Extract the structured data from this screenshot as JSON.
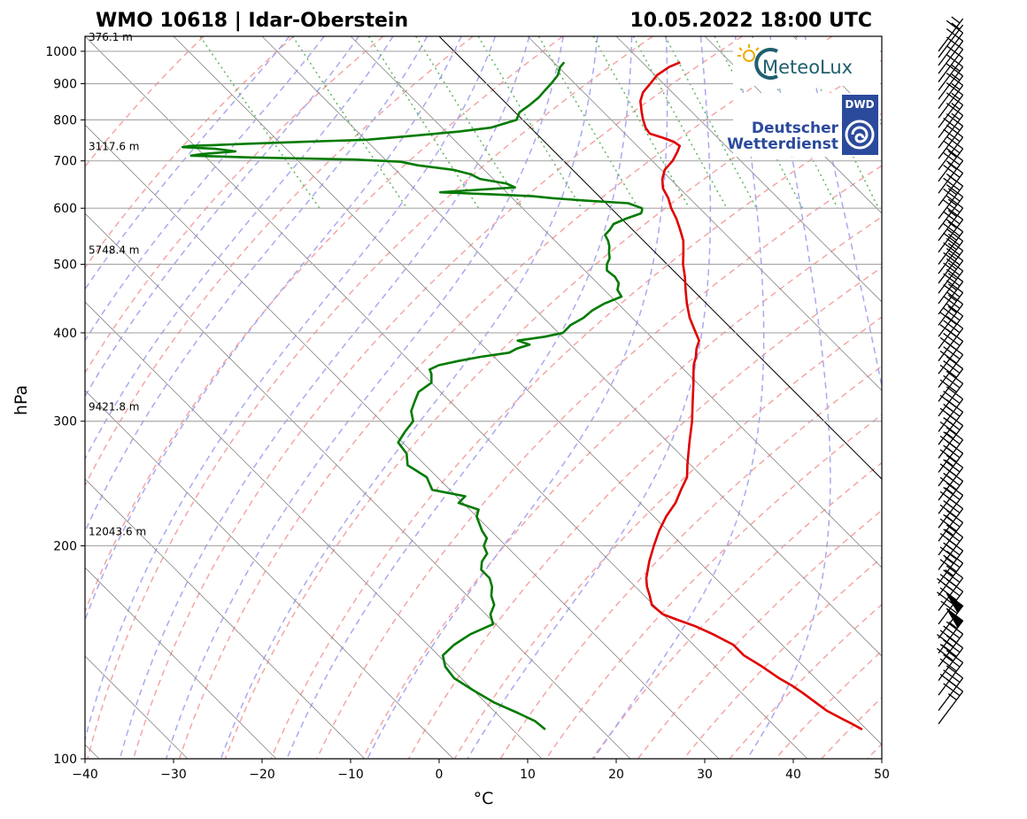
{
  "header": {
    "station": "WMO 10618 | Idar-Oberstein",
    "datetime": "10.05.2022 18:00 UTC"
  },
  "logos": {
    "meteolux": "MeteoLux",
    "dwd_badge": "DWD",
    "dwd_line1": "Deutscher",
    "dwd_line2": "Wetterdienst"
  },
  "colors": {
    "temperature": "#e00000",
    "dewpoint": "#007a00",
    "dry_adiabat": "#f4a6a6",
    "moist_adiabat": "#a9a9ee",
    "mixing_ratio": "#5cb85c",
    "isotherm": "#888888"
  },
  "chart_data": {
    "type": "line",
    "chart_kind": "skew-T log-p",
    "xlabel": "°C",
    "ylabel": "hPa",
    "xlim": [
      -40,
      50
    ],
    "ylim": [
      1050,
      100
    ],
    "y_scale": "log",
    "grid": true,
    "x_ticks": [
      "−40",
      "−30",
      "−20",
      "−10",
      "0",
      "10",
      "20",
      "30",
      "40",
      "50"
    ],
    "y_ticks": [
      {
        "p": 100,
        "label": "100"
      },
      {
        "p": 200,
        "label": "200"
      },
      {
        "p": 300,
        "label": "300"
      },
      {
        "p": 400,
        "label": "400"
      },
      {
        "p": 500,
        "label": "500"
      },
      {
        "p": 600,
        "label": "600"
      },
      {
        "p": 700,
        "label": "700"
      },
      {
        "p": 800,
        "label": "800"
      },
      {
        "p": 900,
        "label": "900"
      },
      {
        "p": 1000,
        "label": "1000"
      }
    ],
    "height_labels": [
      {
        "p": 200,
        "label": "12043.6 m"
      },
      {
        "p": 300,
        "label": "9421.8 m"
      },
      {
        "p": 500,
        "label": "5748.4 m"
      },
      {
        "p": 700,
        "label": "3117.6 m"
      },
      {
        "p": 1000,
        "label": "376.1 m"
      }
    ],
    "series": [
      {
        "key": "temperature",
        "points": [
          [
            965,
            24.3
          ],
          [
            950,
            22.5
          ],
          [
            925,
            20.2
          ],
          [
            900,
            18.5
          ],
          [
            875,
            16.7
          ],
          [
            850,
            15.4
          ],
          [
            820,
            14.3
          ],
          [
            800,
            13.6
          ],
          [
            780,
            13.0
          ],
          [
            765,
            12.8
          ],
          [
            755,
            13.8
          ],
          [
            745,
            14.6
          ],
          [
            735,
            14.8
          ],
          [
            720,
            13.8
          ],
          [
            700,
            12.3
          ],
          [
            680,
            10.4
          ],
          [
            660,
            9.1
          ],
          [
            640,
            8.1
          ],
          [
            620,
            7.6
          ],
          [
            600,
            6.8
          ],
          [
            580,
            6.2
          ],
          [
            560,
            5.4
          ],
          [
            540,
            4.5
          ],
          [
            520,
            3.2
          ],
          [
            500,
            1.8
          ],
          [
            480,
            0.6
          ],
          [
            460,
            -0.8
          ],
          [
            440,
            -2.2
          ],
          [
            420,
            -3.5
          ],
          [
            400,
            -4.5
          ],
          [
            390,
            -5.0
          ],
          [
            380,
            -6.2
          ],
          [
            370,
            -7.2
          ],
          [
            360,
            -8.4
          ],
          [
            350,
            -9.4
          ],
          [
            340,
            -10.4
          ],
          [
            320,
            -12.6
          ],
          [
            300,
            -14.9
          ],
          [
            280,
            -17.6
          ],
          [
            260,
            -20.4
          ],
          [
            250,
            -21.8
          ],
          [
            240,
            -23.9
          ],
          [
            230,
            -26.0
          ],
          [
            220,
            -28.6
          ],
          [
            210,
            -31.0
          ],
          [
            200,
            -33.3
          ],
          [
            190,
            -35.6
          ],
          [
            180,
            -37.8
          ],
          [
            175,
            -38.7
          ],
          [
            170,
            -39.4
          ],
          [
            165,
            -40.2
          ],
          [
            160,
            -40.0
          ],
          [
            157,
            -38.9
          ],
          [
            154,
            -37.7
          ],
          [
            150,
            -36.6
          ],
          [
            145,
            -35.5
          ],
          [
            140,
            -35.5
          ],
          [
            135,
            -34.7
          ],
          [
            130,
            -34.1
          ],
          [
            127,
            -33.5
          ],
          [
            124,
            -33.1
          ],
          [
            120,
            -32.7
          ],
          [
            117,
            -32.4
          ],
          [
            114,
            -31.6
          ],
          [
            112,
            -31.0
          ],
          [
            110,
            -30.5
          ]
        ]
      },
      {
        "key": "dewpoint",
        "points": [
          [
            965,
            11.2
          ],
          [
            950,
            10.2
          ],
          [
            925,
            9.0
          ],
          [
            900,
            7.3
          ],
          [
            880,
            5.8
          ],
          [
            860,
            4.3
          ],
          [
            840,
            2.5
          ],
          [
            820,
            0.5
          ],
          [
            800,
            -0.7
          ],
          [
            780,
            -4.5
          ],
          [
            770,
            -8.5
          ],
          [
            760,
            -14.0
          ],
          [
            750,
            -19.8
          ],
          [
            745,
            -27.0
          ],
          [
            740,
            -34.0
          ],
          [
            737,
            -37.5
          ],
          [
            735,
            -40.5
          ],
          [
            732,
            -41.5
          ],
          [
            728,
            -38.0
          ],
          [
            722,
            -36.0
          ],
          [
            716,
            -40.0
          ],
          [
            712,
            -41.5
          ],
          [
            708,
            -35.0
          ],
          [
            703,
            -23.5
          ],
          [
            698,
            -18.5
          ],
          [
            690,
            -17.0
          ],
          [
            680,
            -13.5
          ],
          [
            670,
            -12.0
          ],
          [
            660,
            -11.5
          ],
          [
            650,
            -9.0
          ],
          [
            642,
            -8.5
          ],
          [
            636,
            -14.0
          ],
          [
            632,
            -17.5
          ],
          [
            628,
            -12.0
          ],
          [
            624,
            -7.5
          ],
          [
            620,
            -5.5
          ],
          [
            615,
            -2.0
          ],
          [
            610,
            2.5
          ],
          [
            605,
            3.0
          ],
          [
            600,
            3.5
          ],
          [
            595,
            3.2
          ],
          [
            590,
            2.8
          ],
          [
            580,
            0.5
          ],
          [
            570,
            -1.5
          ],
          [
            560,
            -2.5
          ],
          [
            550,
            -3.7
          ],
          [
            540,
            -4.0
          ],
          [
            530,
            -4.5
          ],
          [
            520,
            -5.2
          ],
          [
            510,
            -5.8
          ],
          [
            500,
            -6.8
          ],
          [
            490,
            -7.5
          ],
          [
            480,
            -7.3
          ],
          [
            470,
            -7.6
          ],
          [
            460,
            -8.5
          ],
          [
            450,
            -8.8
          ],
          [
            440,
            -11.5
          ],
          [
            430,
            -13.7
          ],
          [
            420,
            -15.5
          ],
          [
            410,
            -17.8
          ],
          [
            400,
            -19.5
          ],
          [
            395,
            -22.0
          ],
          [
            390,
            -25.5
          ],
          [
            385,
            -24.6
          ],
          [
            380,
            -26.5
          ],
          [
            375,
            -27.8
          ],
          [
            370,
            -31.5
          ],
          [
            365,
            -34.5
          ],
          [
            360,
            -37.2
          ],
          [
            355,
            -38.7
          ],
          [
            350,
            -39.0
          ],
          [
            340,
            -40.0
          ],
          [
            330,
            -42.5
          ],
          [
            320,
            -44.0
          ],
          [
            310,
            -45.5
          ],
          [
            300,
            -46.4
          ],
          [
            290,
            -48.5
          ],
          [
            280,
            -50.5
          ],
          [
            270,
            -50.8
          ],
          [
            260,
            -52.0
          ],
          [
            250,
            -51.2
          ],
          [
            240,
            -52.0
          ],
          [
            235,
            -49.0
          ],
          [
            230,
            -50.5
          ],
          [
            225,
            -49.0
          ],
          [
            220,
            -50.0
          ],
          [
            215,
            -50.5
          ],
          [
            210,
            -51.0
          ],
          [
            205,
            -51.3
          ],
          [
            200,
            -52.5
          ],
          [
            195,
            -53.0
          ],
          [
            190,
            -54.5
          ],
          [
            185,
            -55.5
          ],
          [
            180,
            -55.5
          ],
          [
            175,
            -56.2
          ],
          [
            170,
            -57.3
          ],
          [
            165,
            -58.0
          ],
          [
            160,
            -59.5
          ],
          [
            155,
            -60.3
          ],
          [
            150,
            -64.0
          ],
          [
            145,
            -67.0
          ],
          [
            140,
            -69.5
          ],
          [
            135,
            -70.5
          ],
          [
            130,
            -70.8
          ],
          [
            125,
            -70.0
          ],
          [
            120,
            -69.0
          ],
          [
            116,
            -67.5
          ],
          [
            113,
            -66.5
          ],
          [
            110,
            -66.3
          ]
        ]
      }
    ],
    "wind_barbs": [
      {
        "p": 1000,
        "kt": 5
      },
      {
        "p": 980,
        "kt": 5
      },
      {
        "p": 955,
        "kt": 10
      },
      {
        "p": 930,
        "kt": 10
      },
      {
        "p": 905,
        "kt": 10
      },
      {
        "p": 880,
        "kt": 10
      },
      {
        "p": 855,
        "kt": 15
      },
      {
        "p": 830,
        "kt": 15
      },
      {
        "p": 805,
        "kt": 15
      },
      {
        "p": 780,
        "kt": 15
      },
      {
        "p": 755,
        "kt": 15
      },
      {
        "p": 730,
        "kt": 15
      },
      {
        "p": 705,
        "kt": 20
      },
      {
        "p": 680,
        "kt": 20
      },
      {
        "p": 655,
        "kt": 25
      },
      {
        "p": 630,
        "kt": 25
      },
      {
        "p": 605,
        "kt": 25
      },
      {
        "p": 580,
        "kt": 25
      },
      {
        "p": 560,
        "kt": 25
      },
      {
        "p": 540,
        "kt": 25
      },
      {
        "p": 520,
        "kt": 25
      },
      {
        "p": 500,
        "kt": 25
      },
      {
        "p": 485,
        "kt": 25
      },
      {
        "p": 470,
        "kt": 25
      },
      {
        "p": 455,
        "kt": 25
      },
      {
        "p": 440,
        "kt": 25
      },
      {
        "p": 425,
        "kt": 25
      },
      {
        "p": 410,
        "kt": 25
      },
      {
        "p": 395,
        "kt": 25
      },
      {
        "p": 380,
        "kt": 30
      },
      {
        "p": 365,
        "kt": 30
      },
      {
        "p": 350,
        "kt": 30
      },
      {
        "p": 335,
        "kt": 30
      },
      {
        "p": 320,
        "kt": 30
      },
      {
        "p": 305,
        "kt": 30
      },
      {
        "p": 290,
        "kt": 35
      },
      {
        "p": 278,
        "kt": 35
      },
      {
        "p": 266,
        "kt": 35
      },
      {
        "p": 254,
        "kt": 35
      },
      {
        "p": 243,
        "kt": 35
      },
      {
        "p": 232,
        "kt": 35
      },
      {
        "p": 222,
        "kt": 35
      },
      {
        "p": 212,
        "kt": 35
      },
      {
        "p": 203,
        "kt": 35
      },
      {
        "p": 194,
        "kt": 35
      },
      {
        "p": 185,
        "kt": 35
      },
      {
        "p": 177,
        "kt": 35
      },
      {
        "p": 170,
        "kt": 35
      },
      {
        "p": 162,
        "kt": 40
      },
      {
        "p": 155,
        "kt": 40
      },
      {
        "p": 148,
        "kt": 60
      },
      {
        "p": 141,
        "kt": 55
      },
      {
        "p": 135,
        "kt": 45
      },
      {
        "p": 129,
        "kt": 40
      },
      {
        "p": 123,
        "kt": 30
      },
      {
        "p": 117,
        "kt": 30
      },
      {
        "p": 112,
        "kt": 25
      }
    ]
  }
}
